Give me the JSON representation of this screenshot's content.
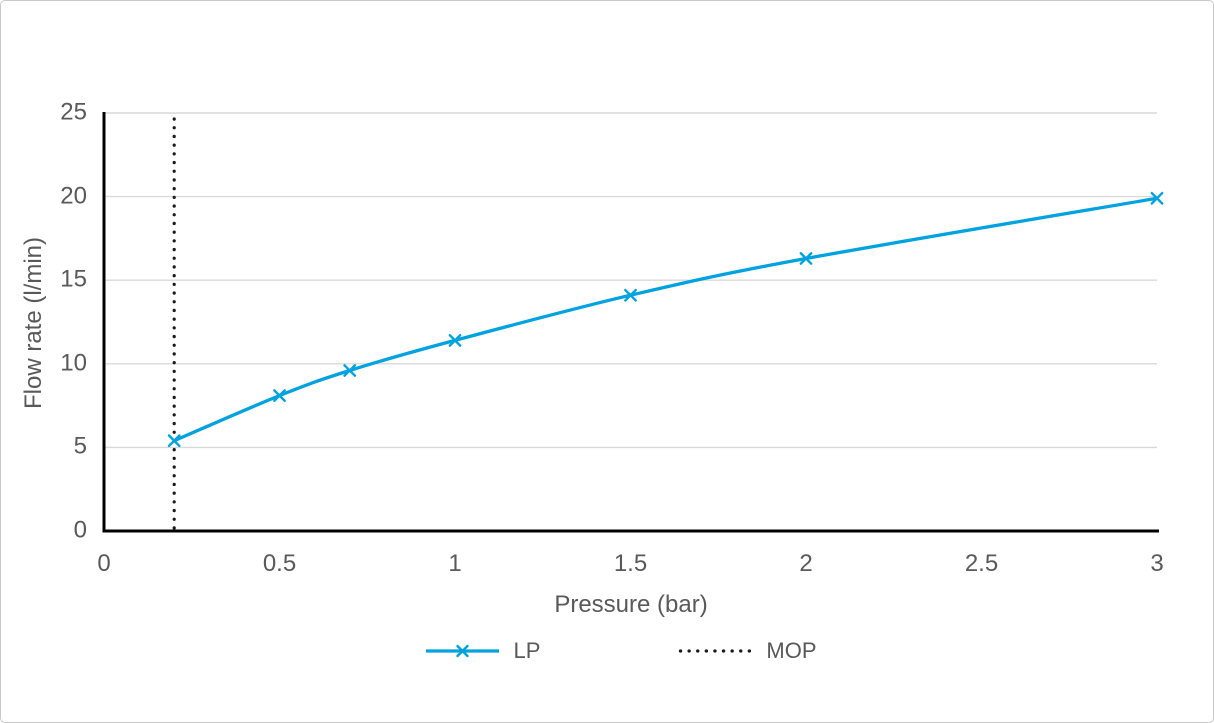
{
  "chart_data": {
    "type": "line",
    "title": "",
    "xlabel": "Pressure (bar)",
    "ylabel": "Flow rate (l/min)",
    "xlim": [
      0,
      3
    ],
    "ylim": [
      0,
      25
    ],
    "x_ticks": [
      0,
      0.5,
      1,
      1.5,
      2,
      2.5,
      3
    ],
    "x_tick_labels": [
      "0",
      "0.5",
      "1",
      "1.5",
      "2",
      "2.5",
      "3"
    ],
    "y_ticks": [
      0,
      5,
      10,
      15,
      20,
      25
    ],
    "y_tick_labels": [
      "0",
      "5",
      "10",
      "15",
      "20",
      "25"
    ],
    "grid": "horizontal-only",
    "legend_position": "bottom-center",
    "series": [
      {
        "name": "LP",
        "type": "smooth-line",
        "marker": "x",
        "color": "#00A2E0",
        "x": [
          0.2,
          0.5,
          0.7,
          1,
          1.5,
          2,
          3
        ],
        "y": [
          5.4,
          8.1,
          9.6,
          11.4,
          14.1,
          16.3,
          19.9
        ]
      },
      {
        "name": "MOP",
        "type": "vertical-dotted-line",
        "color": "#1A1A1A",
        "x": 0.2,
        "y_span": [
          0,
          25
        ]
      }
    ]
  },
  "colors": {
    "axis": "#000000",
    "gridline": "#D9D9D9",
    "tick_text": "#595959",
    "background": "#FFFFFF",
    "border": "#C9C9C9"
  }
}
